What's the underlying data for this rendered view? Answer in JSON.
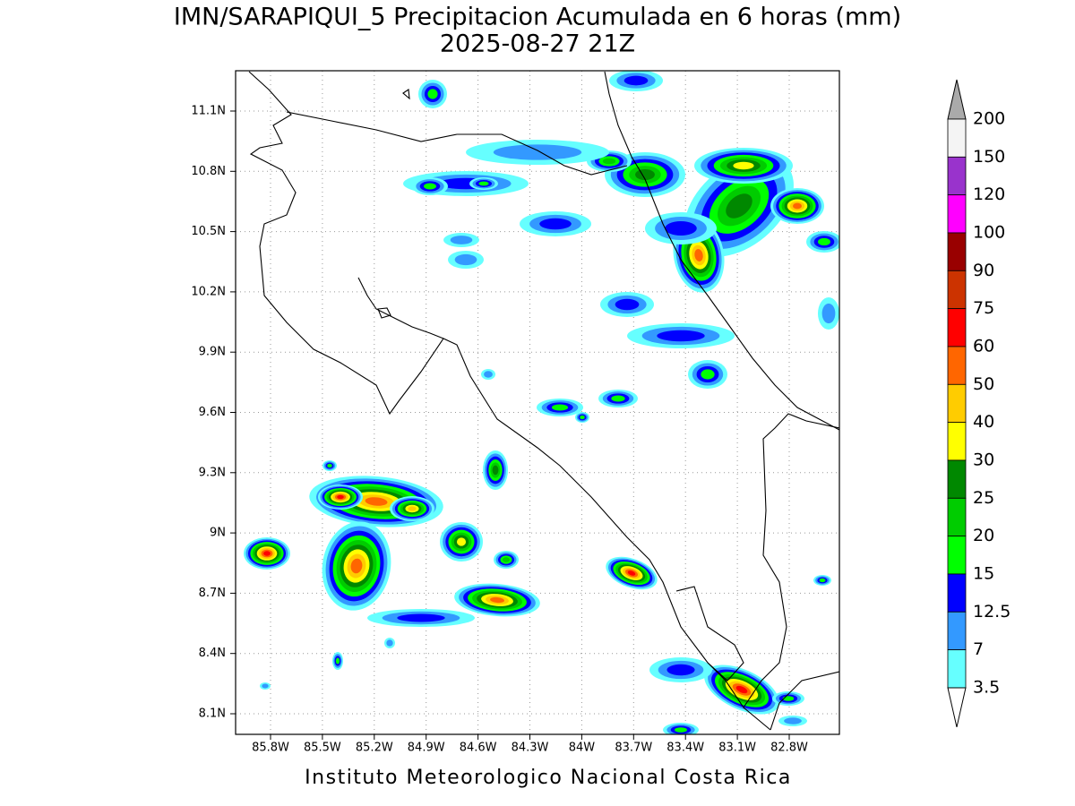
{
  "map": {
    "title": "IMN/SARAPIQUI_5 Precipitacion Acumulada en 6 horas (mm)",
    "subtitle": "2025-08-27 21Z",
    "footer": "Instituto Meteorologico Nacional Costa Rica",
    "lon_labels": [
      "85.8W",
      "85.5W",
      "85.2W",
      "84.9W",
      "84.6W",
      "84.3W",
      "84W",
      "83.7W",
      "83.4W",
      "83.1W",
      "82.8W"
    ],
    "lat_labels": [
      "11.1N",
      "10.8N",
      "10.5N",
      "10.2N",
      "9.9N",
      "9.6N",
      "9.3N",
      "9N",
      "8.7N",
      "8.4N",
      "8.1N"
    ],
    "colorbar": {
      "labels": [
        "200",
        "150",
        "120",
        "100",
        "90",
        "75",
        "60",
        "50",
        "40",
        "30",
        "25",
        "20",
        "15",
        "12.5",
        "7",
        "3.5"
      ],
      "colors": [
        "#f4f4f4",
        "#9933cc",
        "#ff00ff",
        "#990000",
        "#cc3300",
        "#ff0000",
        "#ff6600",
        "#ffcc00",
        "#ffff00",
        "#008800",
        "#00cc00",
        "#00ff00",
        "#0000ff",
        "#3399ff",
        "#66ffff"
      ],
      "over_color": "#aaaaaa",
      "under_color": "#ffffff"
    }
  }
}
